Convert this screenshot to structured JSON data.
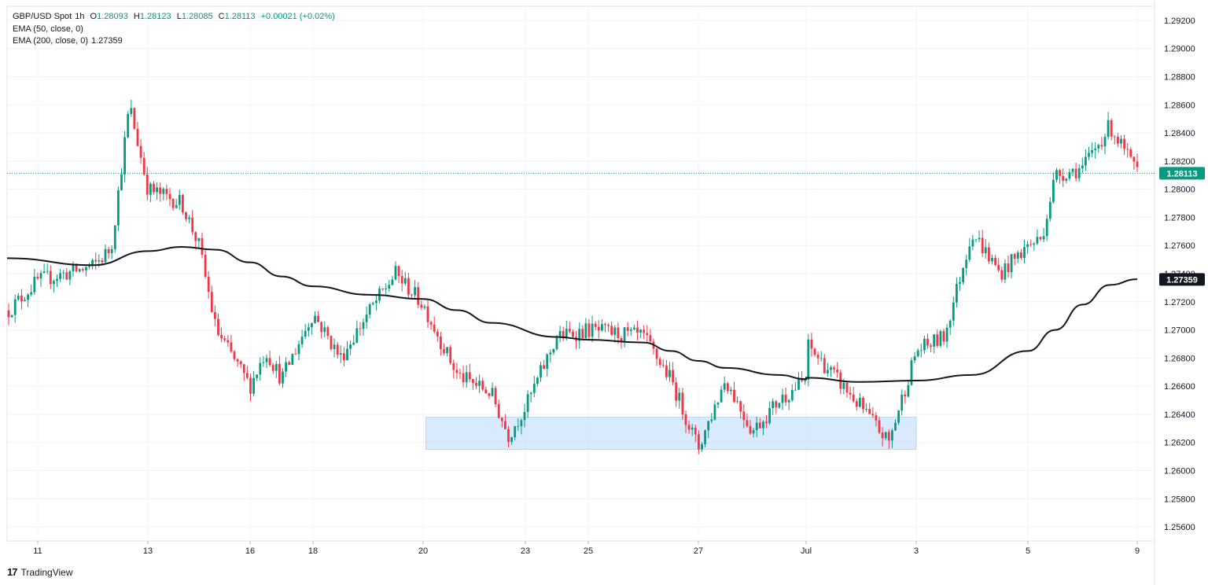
{
  "header": {
    "symbol": "GBP/USD Spot",
    "interval": "1h",
    "open_label": "O",
    "open": "1.28093",
    "high_label": "H",
    "high": "1.28123",
    "low_label": "L",
    "low": "1.28085",
    "close_label": "C",
    "close": "1.28113",
    "change": "+0.00021 (+0.02%)",
    "ema50_label": "EMA (50, close, 0)",
    "ema200_label": "EMA (200, close, 0)",
    "ema200_value": "1.27359"
  },
  "branding": {
    "logo": "17",
    "name": "TradingView"
  },
  "colors": {
    "up": "#089981",
    "down": "#f23645",
    "ema200": "#131722",
    "zone_fill": "#bbd9fb",
    "price_label": "#089981"
  },
  "chart_data": {
    "type": "candlestick",
    "ylim": [
      1.255,
      1.293
    ],
    "y_ticks": [
      "1.29200",
      "1.29000",
      "1.28800",
      "1.28600",
      "1.28400",
      "1.28200",
      "1.28000",
      "1.27800",
      "1.27600",
      "1.27400",
      "1.27200",
      "1.27000",
      "1.26800",
      "1.26600",
      "1.26400",
      "1.26200",
      "1.26000",
      "1.25800",
      "1.25600"
    ],
    "x_ticks": [
      "11",
      "13",
      "16",
      "18",
      "20",
      "23",
      "25",
      "27",
      "Jul",
      "3",
      "5",
      "9"
    ],
    "last_price_label": "1.28113",
    "ema200_price_label": "1.27359",
    "last_price": 1.28113,
    "ema200_last": 1.27359,
    "support_zone": {
      "low": 1.2615,
      "high": 1.2638,
      "from": "20",
      "to": "3"
    },
    "key_points": [
      {
        "x": "10",
        "y": 1.2695
      },
      {
        "x": "11",
        "y": 1.2735
      },
      {
        "x": "12",
        "y": 1.2745
      },
      {
        "x": "12",
        "y": 1.2758
      },
      {
        "x": "12",
        "y": 1.286
      },
      {
        "x": "13",
        "y": 1.28
      },
      {
        "x": "14",
        "y": 1.279
      },
      {
        "x": "14",
        "y": 1.276
      },
      {
        "x": "15",
        "y": 1.27
      },
      {
        "x": "16",
        "y": 1.266
      },
      {
        "x": "16",
        "y": 1.2685
      },
      {
        "x": "17",
        "y": 1.2665
      },
      {
        "x": "18",
        "y": 1.2712
      },
      {
        "x": "18",
        "y": 1.268
      },
      {
        "x": "19",
        "y": 1.2712
      },
      {
        "x": "19",
        "y": 1.274
      },
      {
        "x": "20",
        "y": 1.2718
      },
      {
        "x": "21",
        "y": 1.2668
      },
      {
        "x": "22",
        "y": 1.2655
      },
      {
        "x": "22",
        "y": 1.2625
      },
      {
        "x": "23",
        "y": 1.2645
      },
      {
        "x": "24",
        "y": 1.2695
      },
      {
        "x": "25",
        "y": 1.27
      },
      {
        "x": "26",
        "y": 1.2695
      },
      {
        "x": "26",
        "y": 1.2665
      },
      {
        "x": "27",
        "y": 1.2616
      },
      {
        "x": "28",
        "y": 1.2665
      },
      {
        "x": "29",
        "y": 1.2628
      },
      {
        "x": "30",
        "y": 1.265
      },
      {
        "x": "Jul",
        "y": 1.2665
      },
      {
        "x": "1",
        "y": 1.269
      },
      {
        "x": "2",
        "y": 1.2645
      },
      {
        "x": "2",
        "y": 1.262
      },
      {
        "x": "3",
        "y": 1.2685
      },
      {
        "x": "3",
        "y": 1.2695
      },
      {
        "x": "4",
        "y": 1.277
      },
      {
        "x": "4",
        "y": 1.274
      },
      {
        "x": "5",
        "y": 1.276
      },
      {
        "x": "5",
        "y": 1.2765
      },
      {
        "x": "6",
        "y": 1.281
      },
      {
        "x": "7",
        "y": 1.2815
      },
      {
        "x": "8",
        "y": 1.2845
      },
      {
        "x": "9",
        "y": 1.2811
      }
    ],
    "ema200_points": [
      {
        "x": "10",
        "y": 1.2751
      },
      {
        "x": "12",
        "y": 1.2746
      },
      {
        "x": "13",
        "y": 1.2756
      },
      {
        "x": "14",
        "y": 1.2759
      },
      {
        "x": "15",
        "y": 1.2757
      },
      {
        "x": "16",
        "y": 1.2748
      },
      {
        "x": "17",
        "y": 1.2738
      },
      {
        "x": "18",
        "y": 1.2731
      },
      {
        "x": "19",
        "y": 1.2725
      },
      {
        "x": "20",
        "y": 1.2722
      },
      {
        "x": "21",
        "y": 1.2714
      },
      {
        "x": "22",
        "y": 1.2705
      },
      {
        "x": "24",
        "y": 1.2695
      },
      {
        "x": "25",
        "y": 1.2693
      },
      {
        "x": "26",
        "y": 1.2691
      },
      {
        "x": "26",
        "y": 1.2685
      },
      {
        "x": "27",
        "y": 1.2678
      },
      {
        "x": "28",
        "y": 1.2673
      },
      {
        "x": "30",
        "y": 1.2668
      },
      {
        "x": "Jul",
        "y": 1.2665
      },
      {
        "x": "1",
        "y": 1.2666
      },
      {
        "x": "2",
        "y": 1.2663
      },
      {
        "x": "3",
        "y": 1.2664
      },
      {
        "x": "4",
        "y": 1.2668
      },
      {
        "x": "5",
        "y": 1.2685
      },
      {
        "x": "6",
        "y": 1.27
      },
      {
        "x": "7",
        "y": 1.2718
      },
      {
        "x": "8",
        "y": 1.2732
      },
      {
        "x": "9",
        "y": 1.2736
      }
    ]
  }
}
